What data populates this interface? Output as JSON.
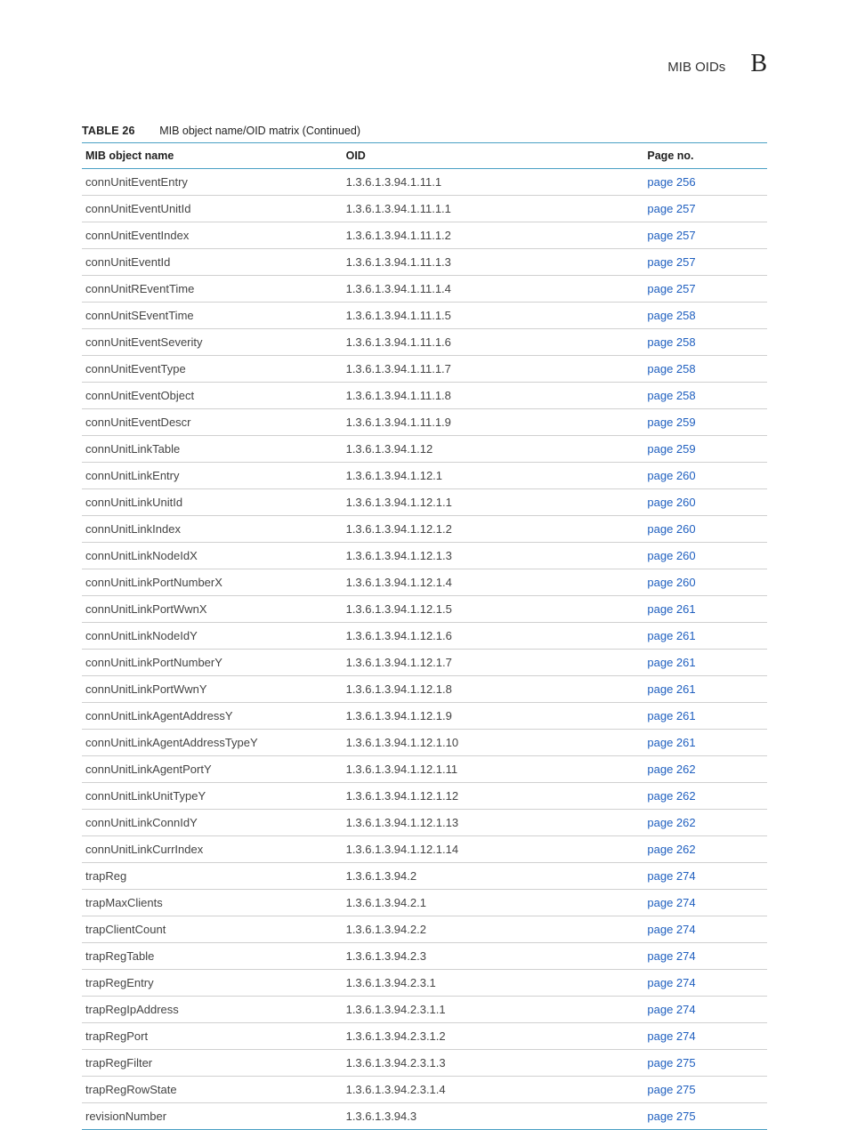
{
  "header": {
    "section_title": "MIB OIDs",
    "section_letter": "B"
  },
  "table": {
    "caption_number": "TABLE 26",
    "caption_text": "MIB object name/OID matrix (Continued)",
    "columns": {
      "name": "MIB object name",
      "oid": "OID",
      "page": "Page no."
    },
    "rows": [
      {
        "name": "connUnitEventEntry",
        "oid": "1.3.6.1.3.94.1.11.1",
        "page": "page 256"
      },
      {
        "name": "connUnitEventUnitId",
        "oid": "1.3.6.1.3.94.1.11.1.1",
        "page": "page 257"
      },
      {
        "name": "connUnitEventIndex",
        "oid": "1.3.6.1.3.94.1.11.1.2",
        "page": "page 257"
      },
      {
        "name": "connUnitEventId",
        "oid": "1.3.6.1.3.94.1.11.1.3",
        "page": "page 257"
      },
      {
        "name": "connUnitREventTime",
        "oid": "1.3.6.1.3.94.1.11.1.4",
        "page": "page 257"
      },
      {
        "name": "connUnitSEventTime",
        "oid": "1.3.6.1.3.94.1.11.1.5",
        "page": "page 258"
      },
      {
        "name": "connUnitEventSeverity",
        "oid": "1.3.6.1.3.94.1.11.1.6",
        "page": "page 258"
      },
      {
        "name": "connUnitEventType",
        "oid": "1.3.6.1.3.94.1.11.1.7",
        "page": "page 258"
      },
      {
        "name": "connUnitEventObject",
        "oid": "1.3.6.1.3.94.1.11.1.8",
        "page": "page 258"
      },
      {
        "name": "connUnitEventDescr",
        "oid": "1.3.6.1.3.94.1.11.1.9",
        "page": "page 259"
      },
      {
        "name": "connUnitLinkTable",
        "oid": "1.3.6.1.3.94.1.12",
        "page": "page 259"
      },
      {
        "name": "connUnitLinkEntry",
        "oid": "1.3.6.1.3.94.1.12.1",
        "page": "page 260"
      },
      {
        "name": "connUnitLinkUnitId",
        "oid": "1.3.6.1.3.94.1.12.1.1",
        "page": "page 260"
      },
      {
        "name": "connUnitLinkIndex",
        "oid": "1.3.6.1.3.94.1.12.1.2",
        "page": "page 260"
      },
      {
        "name": "connUnitLinkNodeIdX",
        "oid": "1.3.6.1.3.94.1.12.1.3",
        "page": "page 260"
      },
      {
        "name": "connUnitLinkPortNumberX",
        "oid": "1.3.6.1.3.94.1.12.1.4",
        "page": "page 260"
      },
      {
        "name": "connUnitLinkPortWwnX",
        "oid": "1.3.6.1.3.94.1.12.1.5",
        "page": "page 261"
      },
      {
        "name": "connUnitLinkNodeIdY",
        "oid": "1.3.6.1.3.94.1.12.1.6",
        "page": "page 261"
      },
      {
        "name": "connUnitLinkPortNumberY",
        "oid": "1.3.6.1.3.94.1.12.1.7",
        "page": "page 261"
      },
      {
        "name": "connUnitLinkPortWwnY",
        "oid": "1.3.6.1.3.94.1.12.1.8",
        "page": "page 261"
      },
      {
        "name": "connUnitLinkAgentAddressY",
        "oid": "1.3.6.1.3.94.1.12.1.9",
        "page": "page 261"
      },
      {
        "name": "connUnitLinkAgentAddressTypeY",
        "oid": "1.3.6.1.3.94.1.12.1.10",
        "page": "page 261"
      },
      {
        "name": "connUnitLinkAgentPortY",
        "oid": "1.3.6.1.3.94.1.12.1.11",
        "page": "page 262"
      },
      {
        "name": "connUnitLinkUnitTypeY",
        "oid": "1.3.6.1.3.94.1.12.1.12",
        "page": "page 262"
      },
      {
        "name": "connUnitLinkConnIdY",
        "oid": "1.3.6.1.3.94.1.12.1.13",
        "page": "page 262"
      },
      {
        "name": "connUnitLinkCurrIndex",
        "oid": "1.3.6.1.3.94.1.12.1.14",
        "page": "page 262"
      },
      {
        "name": "trapReg",
        "oid": "1.3.6.1.3.94.2",
        "page": "page 274"
      },
      {
        "name": "trapMaxClients",
        "oid": "1.3.6.1.3.94.2.1",
        "page": "page 274"
      },
      {
        "name": "trapClientCount",
        "oid": "1.3.6.1.3.94.2.2",
        "page": "page 274"
      },
      {
        "name": "trapRegTable",
        "oid": "1.3.6.1.3.94.2.3",
        "page": "page 274"
      },
      {
        "name": "trapRegEntry",
        "oid": "1.3.6.1.3.94.2.3.1",
        "page": "page 274"
      },
      {
        "name": "trapRegIpAddress",
        "oid": "1.3.6.1.3.94.2.3.1.1",
        "page": "page 274"
      },
      {
        "name": "trapRegPort",
        "oid": "1.3.6.1.3.94.2.3.1.2",
        "page": "page 274"
      },
      {
        "name": "trapRegFilter",
        "oid": "1.3.6.1.3.94.2.3.1.3",
        "page": "page 275"
      },
      {
        "name": "trapRegRowState",
        "oid": "1.3.6.1.3.94.2.3.1.4",
        "page": "page 275"
      },
      {
        "name": "revisionNumber",
        "oid": "1.3.6.1.3.94.3",
        "page": "page 275"
      }
    ]
  },
  "styling": {
    "link_color": "#1f5fbf",
    "rule_color": "#4aa0c4",
    "row_border_color": "#d0d0d0",
    "background_color": "#ffffff",
    "body_text_color": "#444444",
    "header_font_size_pt": 15,
    "letter_font_size_pt": 28,
    "caption_font_size_pt": 12.5,
    "table_font_size_pt": 13
  }
}
